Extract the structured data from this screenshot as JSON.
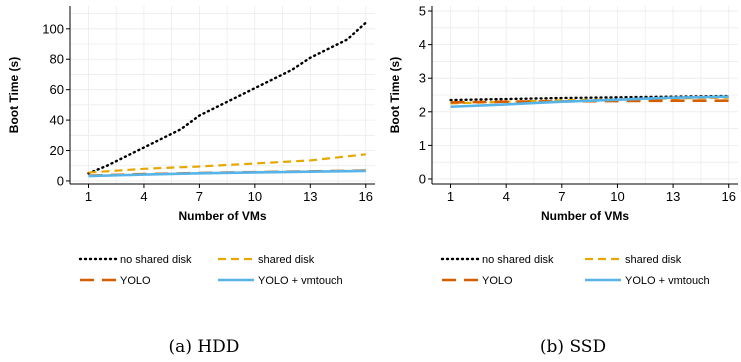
{
  "chart_data": [
    {
      "type": "line",
      "xlabel": "Number of VMs",
      "ylabel": "Boot Time (s)",
      "xlim": [
        0,
        16.5
      ],
      "ylim": [
        -2,
        115
      ],
      "xticks": [
        1,
        4,
        7,
        10,
        13,
        16
      ],
      "yticks": [
        0,
        20,
        40,
        60,
        80,
        100
      ],
      "grid": true,
      "legend_placement": "bottom",
      "caption": "(a) HDD",
      "series": [
        {
          "name": "no shared disk",
          "color": "#000000",
          "style": "dotted",
          "x": [
            1,
            2,
            3,
            4,
            5,
            6,
            7,
            8,
            9,
            10,
            11,
            12,
            13,
            14,
            15,
            16
          ],
          "y": [
            5,
            10,
            16,
            22,
            28,
            34,
            43,
            49,
            55,
            61,
            67,
            73,
            81,
            87,
            93,
            104
          ]
        },
        {
          "name": "shared disk",
          "color": "#E6A800",
          "style": "dashed",
          "x": [
            1,
            4,
            7,
            10,
            13,
            16
          ],
          "y": [
            5.5,
            8,
            9.5,
            11.5,
            13.5,
            17.5
          ]
        },
        {
          "name": "YOLO",
          "color": "#D55E00",
          "style": "longdash",
          "x": [
            1,
            4,
            7,
            10,
            13,
            16
          ],
          "y": [
            3.5,
            4.5,
            5.2,
            5.8,
            6.3,
            6.8
          ]
        },
        {
          "name": "YOLO + vmtouch",
          "color": "#56B4E9",
          "style": "solid",
          "x": [
            1,
            4,
            7,
            10,
            13,
            16
          ],
          "y": [
            3.2,
            4.2,
            5.0,
            5.6,
            6.1,
            6.6
          ]
        }
      ]
    },
    {
      "type": "line",
      "xlabel": "Number of VMs",
      "ylabel": "Boot Time (s)",
      "xlim": [
        0,
        16.5
      ],
      "ylim": [
        -0.15,
        5.15
      ],
      "xticks": [
        1,
        4,
        7,
        10,
        13,
        16
      ],
      "yticks": [
        0,
        1,
        2,
        3,
        4,
        5
      ],
      "grid": true,
      "legend_placement": "bottom",
      "caption": "(b) SSD",
      "series": [
        {
          "name": "no shared disk",
          "color": "#000000",
          "style": "dotted",
          "x": [
            1,
            4,
            7,
            10,
            13,
            16
          ],
          "y": [
            2.35,
            2.38,
            2.41,
            2.43,
            2.45,
            2.47
          ]
        },
        {
          "name": "shared disk",
          "color": "#E6A800",
          "style": "dashed",
          "x": [
            1,
            4,
            7,
            10,
            13,
            16
          ],
          "y": [
            2.25,
            2.3,
            2.34,
            2.37,
            2.4,
            2.42
          ]
        },
        {
          "name": "YOLO",
          "color": "#D55E00",
          "style": "longdash",
          "x": [
            1,
            4,
            7,
            10,
            13,
            16
          ],
          "y": [
            2.28,
            2.3,
            2.31,
            2.32,
            2.33,
            2.33
          ]
        },
        {
          "name": "YOLO + vmtouch",
          "color": "#56B4E9",
          "style": "solid",
          "x": [
            1,
            4,
            7,
            10,
            13,
            16
          ],
          "y": [
            2.15,
            2.22,
            2.3,
            2.36,
            2.42,
            2.45
          ]
        }
      ]
    }
  ]
}
